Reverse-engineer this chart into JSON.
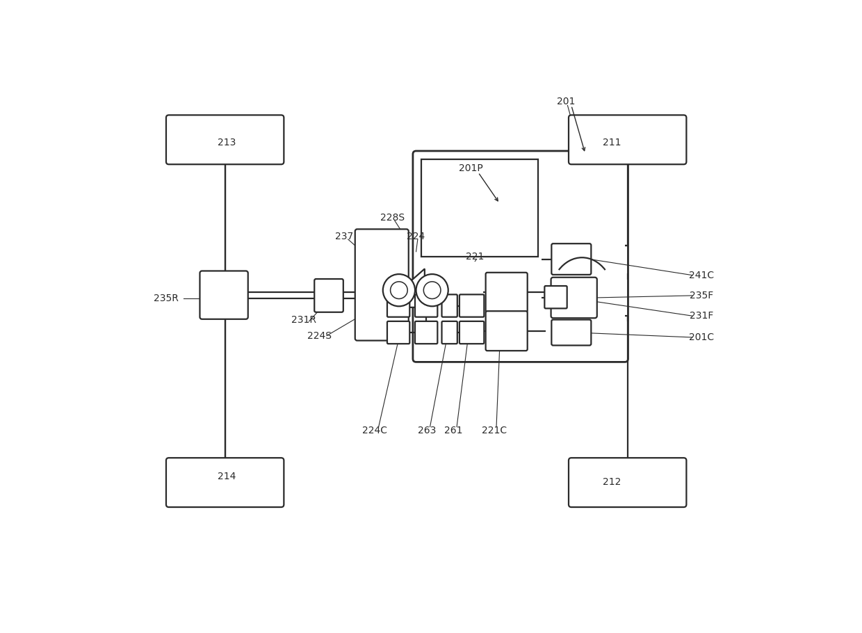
{
  "bg": "#ffffff",
  "lc": "#2a2a2a",
  "lw": 1.6,
  "tlw": 2.0,
  "fig_w": 12.4,
  "fig_h": 9.1,
  "labels": [
    [
      "213",
      2.18,
      7.85
    ],
    [
      "214",
      2.18,
      1.62
    ],
    [
      "211",
      9.38,
      7.85
    ],
    [
      "212",
      9.38,
      1.52
    ],
    [
      "235R",
      1.05,
      4.95
    ],
    [
      "231R",
      3.62,
      4.55
    ],
    [
      "237",
      4.38,
      6.1
    ],
    [
      "228S",
      5.28,
      6.45
    ],
    [
      "224",
      5.72,
      6.1
    ],
    [
      "221",
      6.82,
      5.72
    ],
    [
      "241C",
      11.05,
      5.38
    ],
    [
      "235F",
      11.05,
      5.0
    ],
    [
      "231F",
      11.05,
      4.62
    ],
    [
      "201C",
      11.05,
      4.22
    ],
    [
      "224S",
      3.92,
      4.25
    ],
    [
      "224C",
      4.95,
      2.48
    ],
    [
      "263",
      5.92,
      2.48
    ],
    [
      "261",
      6.42,
      2.48
    ],
    [
      "221C",
      7.18,
      2.48
    ],
    [
      "201",
      8.52,
      8.62
    ],
    [
      "201P",
      6.75,
      7.38
    ]
  ]
}
